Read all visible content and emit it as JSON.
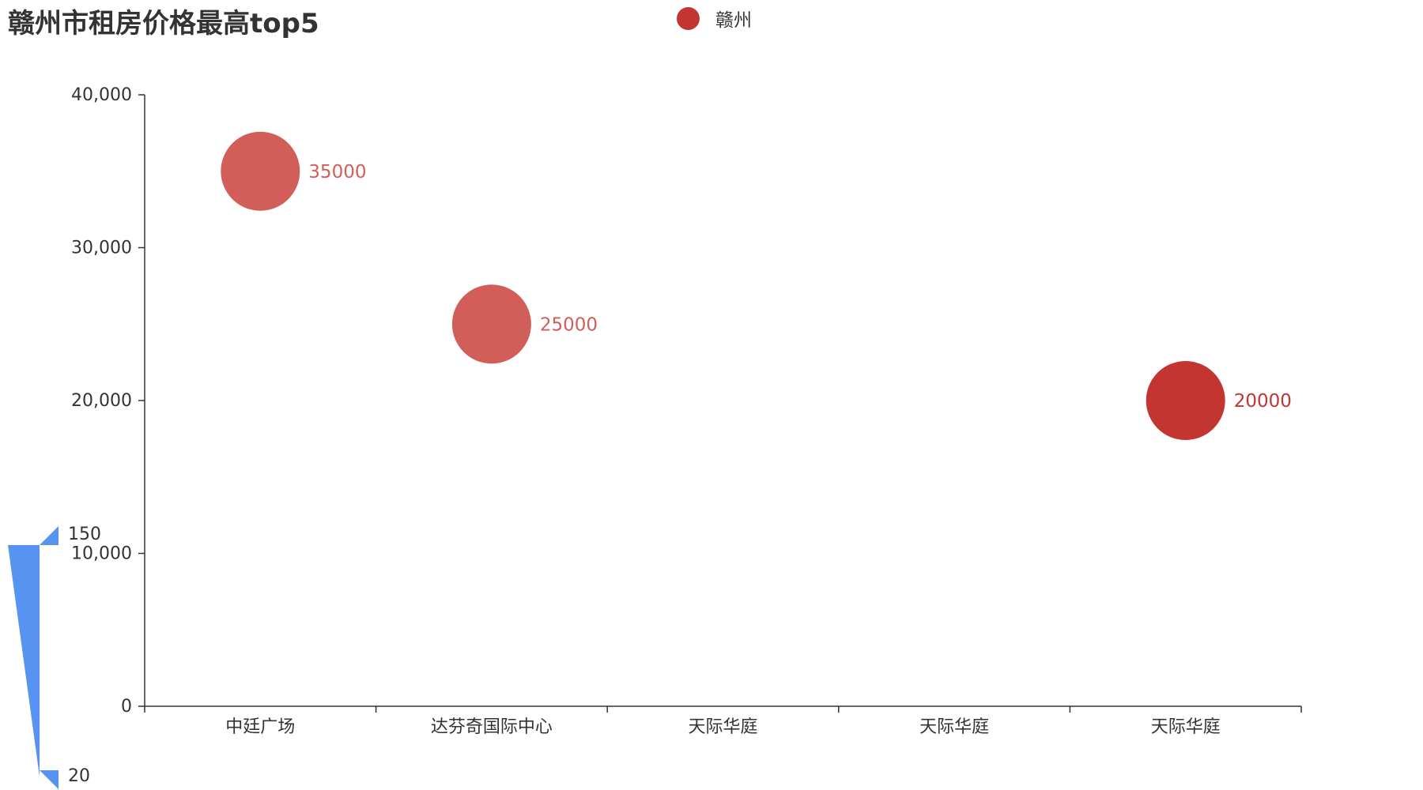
{
  "title": "赣州市租房价格最高top5",
  "legend": {
    "label": "赣州"
  },
  "colors": {
    "series": "#c23531",
    "bubble_light": "#d15e59",
    "axis": "#333333",
    "visual_map": "#5794f2"
  },
  "visual_map": {
    "max_label": "150",
    "min_label": "20",
    "max": 150,
    "min": 20
  },
  "chart_data": {
    "type": "scatter",
    "title": "赣州市租房价格最高top5",
    "xlabel": "",
    "ylabel": "",
    "categories": [
      "中廷广场",
      "达芬奇国际中心",
      "天际华庭",
      "天际华庭",
      "天际华庭"
    ],
    "series": [
      {
        "name": "赣州",
        "points": [
          {
            "category_index": 0,
            "y": 35000,
            "label": "35000"
          },
          {
            "category_index": 1,
            "y": 25000,
            "label": "25000"
          },
          {
            "category_index": 4,
            "y": 20000,
            "label": "20000"
          }
        ]
      }
    ],
    "ylim": [
      0,
      40000
    ],
    "y_ticks": [
      {
        "value": 0,
        "label": "0"
      },
      {
        "value": 10000,
        "label": "10,000"
      },
      {
        "value": 20000,
        "label": "20,000"
      },
      {
        "value": 30000,
        "label": "30,000"
      },
      {
        "value": 40000,
        "label": "40,000"
      }
    ],
    "grid": false,
    "legend_position": "top-center"
  }
}
